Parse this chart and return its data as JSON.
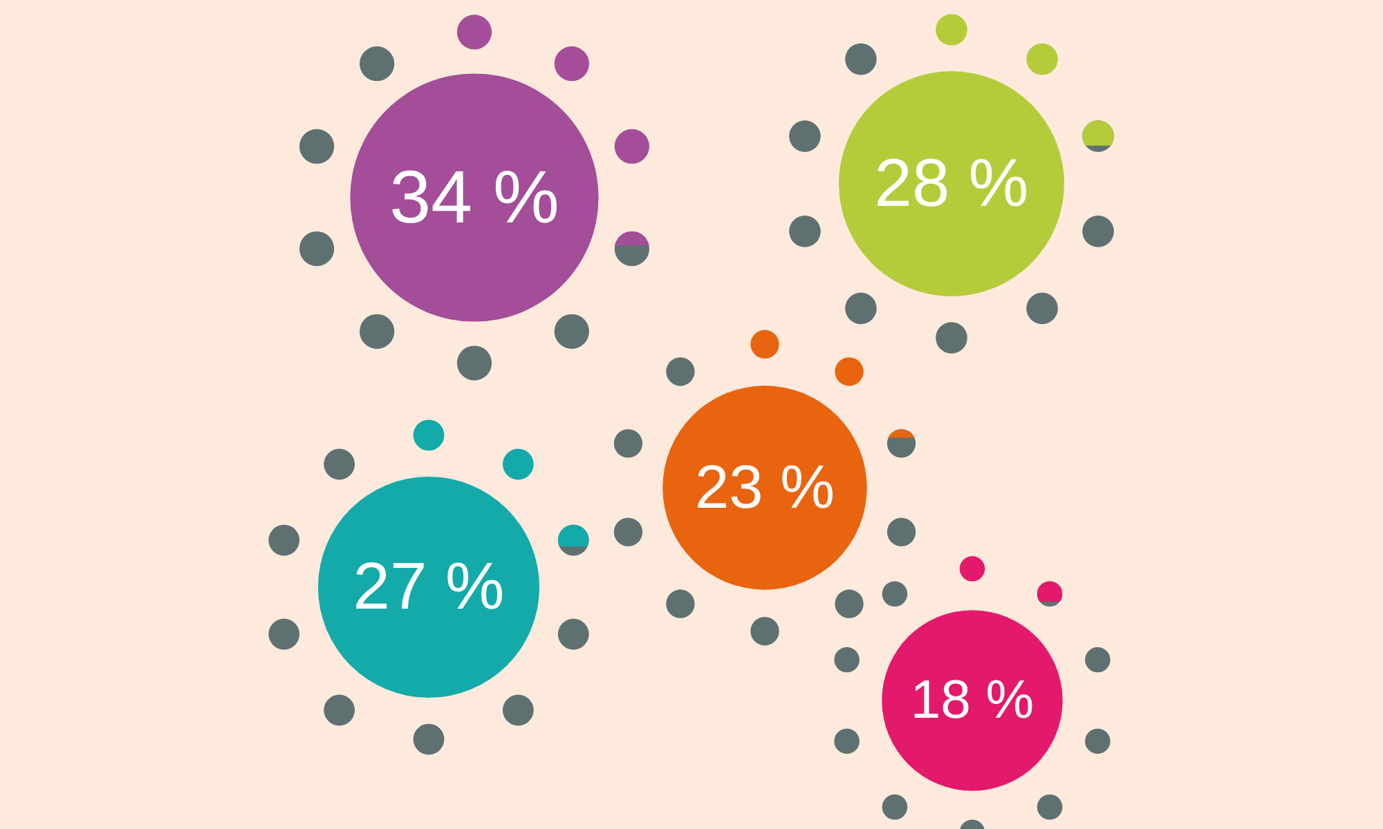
{
  "chart_data": {
    "type": "other",
    "categories": [
      null,
      null,
      null,
      null,
      null
    ],
    "values": [
      34,
      28,
      23,
      27,
      18
    ],
    "value_labels": [
      "34 %",
      "28 %",
      "23 %",
      "27 %",
      "18 %"
    ],
    "colors": [
      "#a44d98",
      "#b5cc3a",
      "#e8640f",
      "#14aaa9",
      "#e3196b"
    ]
  }
}
